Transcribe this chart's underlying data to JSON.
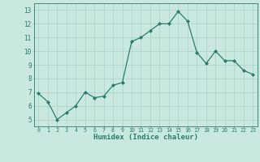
{
  "x": [
    0,
    1,
    2,
    3,
    4,
    5,
    6,
    7,
    8,
    9,
    10,
    11,
    12,
    13,
    14,
    15,
    16,
    17,
    18,
    19,
    20,
    21,
    22,
    23
  ],
  "y": [
    6.9,
    6.3,
    5.0,
    5.5,
    6.0,
    7.0,
    6.6,
    6.7,
    7.5,
    7.7,
    10.7,
    11.0,
    11.5,
    12.0,
    12.0,
    12.9,
    12.2,
    9.9,
    9.1,
    10.0,
    9.3,
    9.3,
    8.6,
    8.3
  ],
  "xlim": [
    -0.5,
    23.5
  ],
  "ylim": [
    4.5,
    13.5
  ],
  "yticks": [
    5,
    6,
    7,
    8,
    9,
    10,
    11,
    12,
    13
  ],
  "xtick_labels": [
    "0",
    "1",
    "2",
    "3",
    "4",
    "5",
    "6",
    "7",
    "8",
    "9",
    "10",
    "11",
    "12",
    "13",
    "14",
    "15",
    "16",
    "17",
    "18",
    "19",
    "20",
    "21",
    "22",
    "23"
  ],
  "xlabel": "Humidex (Indice chaleur)",
  "line_color": "#2a7d6e",
  "marker": "D",
  "marker_size": 2.0,
  "bg_color": "#c8e8e0",
  "grid_color": "#b0d4cc",
  "tick_color": "#2a7d6e",
  "label_color": "#2a7d6e",
  "title": ""
}
